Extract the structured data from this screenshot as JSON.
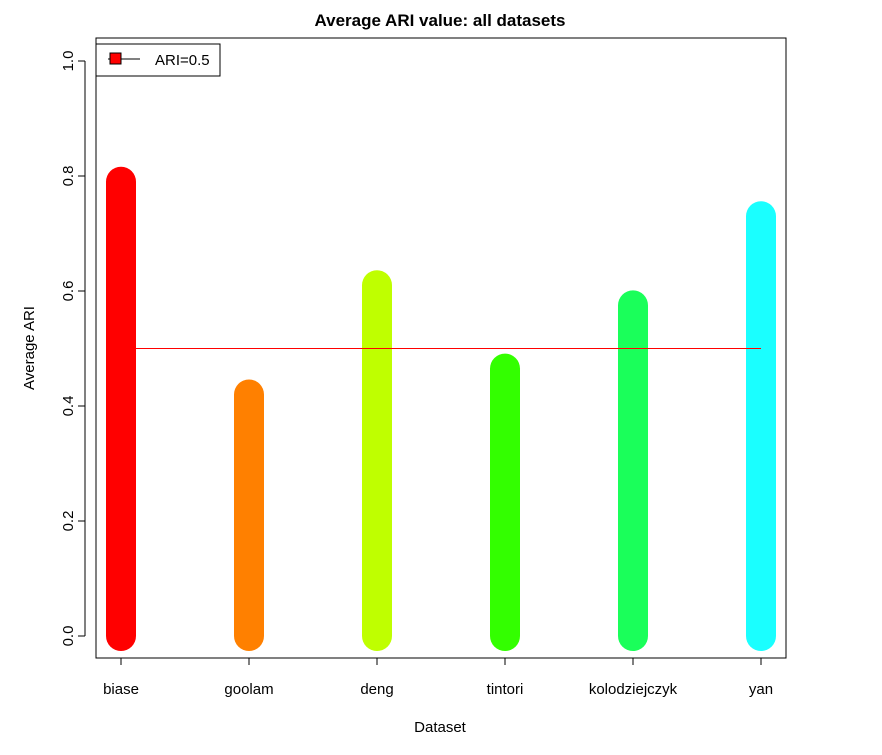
{
  "chart_data": {
    "type": "bar",
    "title": "Average ARI value: all datasets",
    "xlabel": "Dataset",
    "ylabel": "Average ARI",
    "categories": [
      "biase",
      "goolam",
      "deng",
      "tintori",
      "kolodziejczyk",
      "yan"
    ],
    "values": [
      0.79,
      0.42,
      0.61,
      0.465,
      0.575,
      0.73
    ],
    "colors": [
      "#FF0000",
      "#FF8000",
      "#BFFF00",
      "#33FF00",
      "#1AFF5A",
      "#1AFFFF"
    ],
    "ylim": [
      0,
      1
    ],
    "yticks": [
      "0.0",
      "0.2",
      "0.4",
      "0.6",
      "0.8",
      "1.0"
    ],
    "reference_line": {
      "value": 0.5,
      "color": "#FF0000"
    },
    "legend": {
      "position": "top-left",
      "label": "ARI=0.5",
      "marker_color": "#FF0000"
    },
    "grid": false
  }
}
